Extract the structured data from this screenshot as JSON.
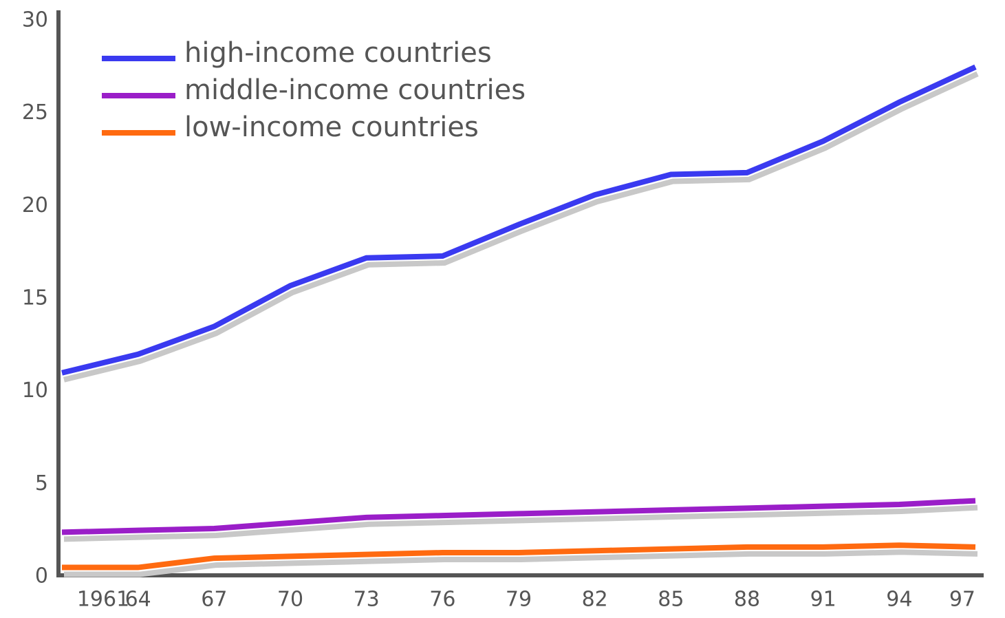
{
  "chart_data": {
    "type": "line",
    "x": [
      1961,
      1964,
      1967,
      1970,
      1973,
      1976,
      1979,
      1982,
      1985,
      1988,
      1991,
      1994,
      1997
    ],
    "series": [
      {
        "name": "high-income countries",
        "color": "#3a3af0",
        "values": [
          11.0,
          12.0,
          13.5,
          15.7,
          17.2,
          17.3,
          19.0,
          20.6,
          21.7,
          21.8,
          23.5,
          25.6,
          27.5
        ]
      },
      {
        "name": "middle-income countries",
        "color": "#9a1ec8",
        "values": [
          2.4,
          2.5,
          2.6,
          2.9,
          3.2,
          3.3,
          3.4,
          3.5,
          3.6,
          3.7,
          3.8,
          3.9,
          4.1
        ]
      },
      {
        "name": "low-income countries",
        "color": "#ff6a10",
        "values": [
          0.5,
          0.5,
          1.0,
          1.1,
          1.2,
          1.3,
          1.3,
          1.4,
          1.5,
          1.6,
          1.6,
          1.7,
          1.6
        ]
      }
    ],
    "xlim": [
      1961,
      1997
    ],
    "xticks": [
      1961,
      {
        "value": 1964,
        "label": "64"
      },
      {
        "value": 1967,
        "label": "67"
      },
      {
        "value": 1970,
        "label": "70"
      },
      {
        "value": 1973,
        "label": "73"
      },
      {
        "value": 1976,
        "label": "76"
      },
      {
        "value": 1979,
        "label": "79"
      },
      {
        "value": 1982,
        "label": "82"
      },
      {
        "value": 1985,
        "label": "85"
      },
      {
        "value": 1988,
        "label": "88"
      },
      {
        "value": 1991,
        "label": "91"
      },
      {
        "value": 1994,
        "label": "94"
      },
      {
        "value": 1997,
        "label": "97"
      }
    ],
    "ylim": [
      0,
      30
    ],
    "yticks": [
      0,
      5,
      10,
      15,
      20,
      25,
      30
    ],
    "legend": "top-left",
    "grid": false
  }
}
